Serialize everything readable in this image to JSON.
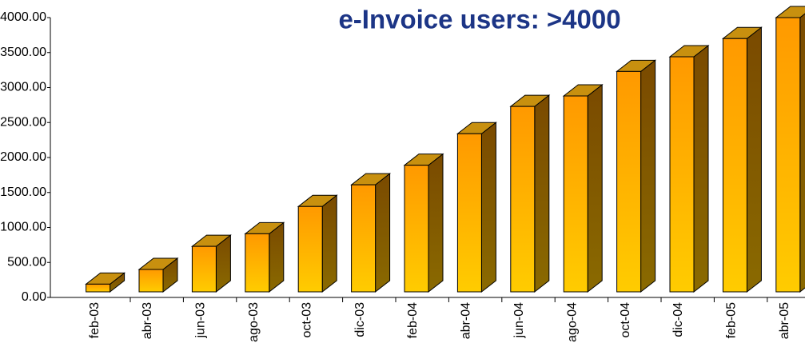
{
  "chart_data": {
    "type": "bar3d",
    "title": "e-Invoice users: >4000",
    "categories": [
      "feb-03",
      "abr-03",
      "jun-03",
      "ago-03",
      "oct-03",
      "dic-03",
      "feb-04",
      "abr-04",
      "jun-04",
      "ago-04",
      "oct-04",
      "dic-04",
      "feb-05",
      "abr-05"
    ],
    "values": [
      190,
      400,
      730,
      910,
      1300,
      1610,
      1890,
      2340,
      2730,
      2880,
      3230,
      3440,
      3700,
      4000
    ],
    "color": "#ffa500",
    "ylim": [
      0,
      4000
    ],
    "yticks": [
      {
        "value": 0,
        "label": "0.00"
      },
      {
        "value": 500,
        "label": "500.00"
      },
      {
        "value": 1000,
        "label": "1000.00"
      },
      {
        "value": 1500,
        "label": "1500.00"
      },
      {
        "value": 2000,
        "label": "2000.00"
      },
      {
        "value": 2500,
        "label": "2500.00"
      },
      {
        "value": 3000,
        "label": "3000.00"
      },
      {
        "value": 3500,
        "label": "3500.00"
      },
      {
        "value": 4000,
        "label": "4000.00"
      }
    ]
  }
}
